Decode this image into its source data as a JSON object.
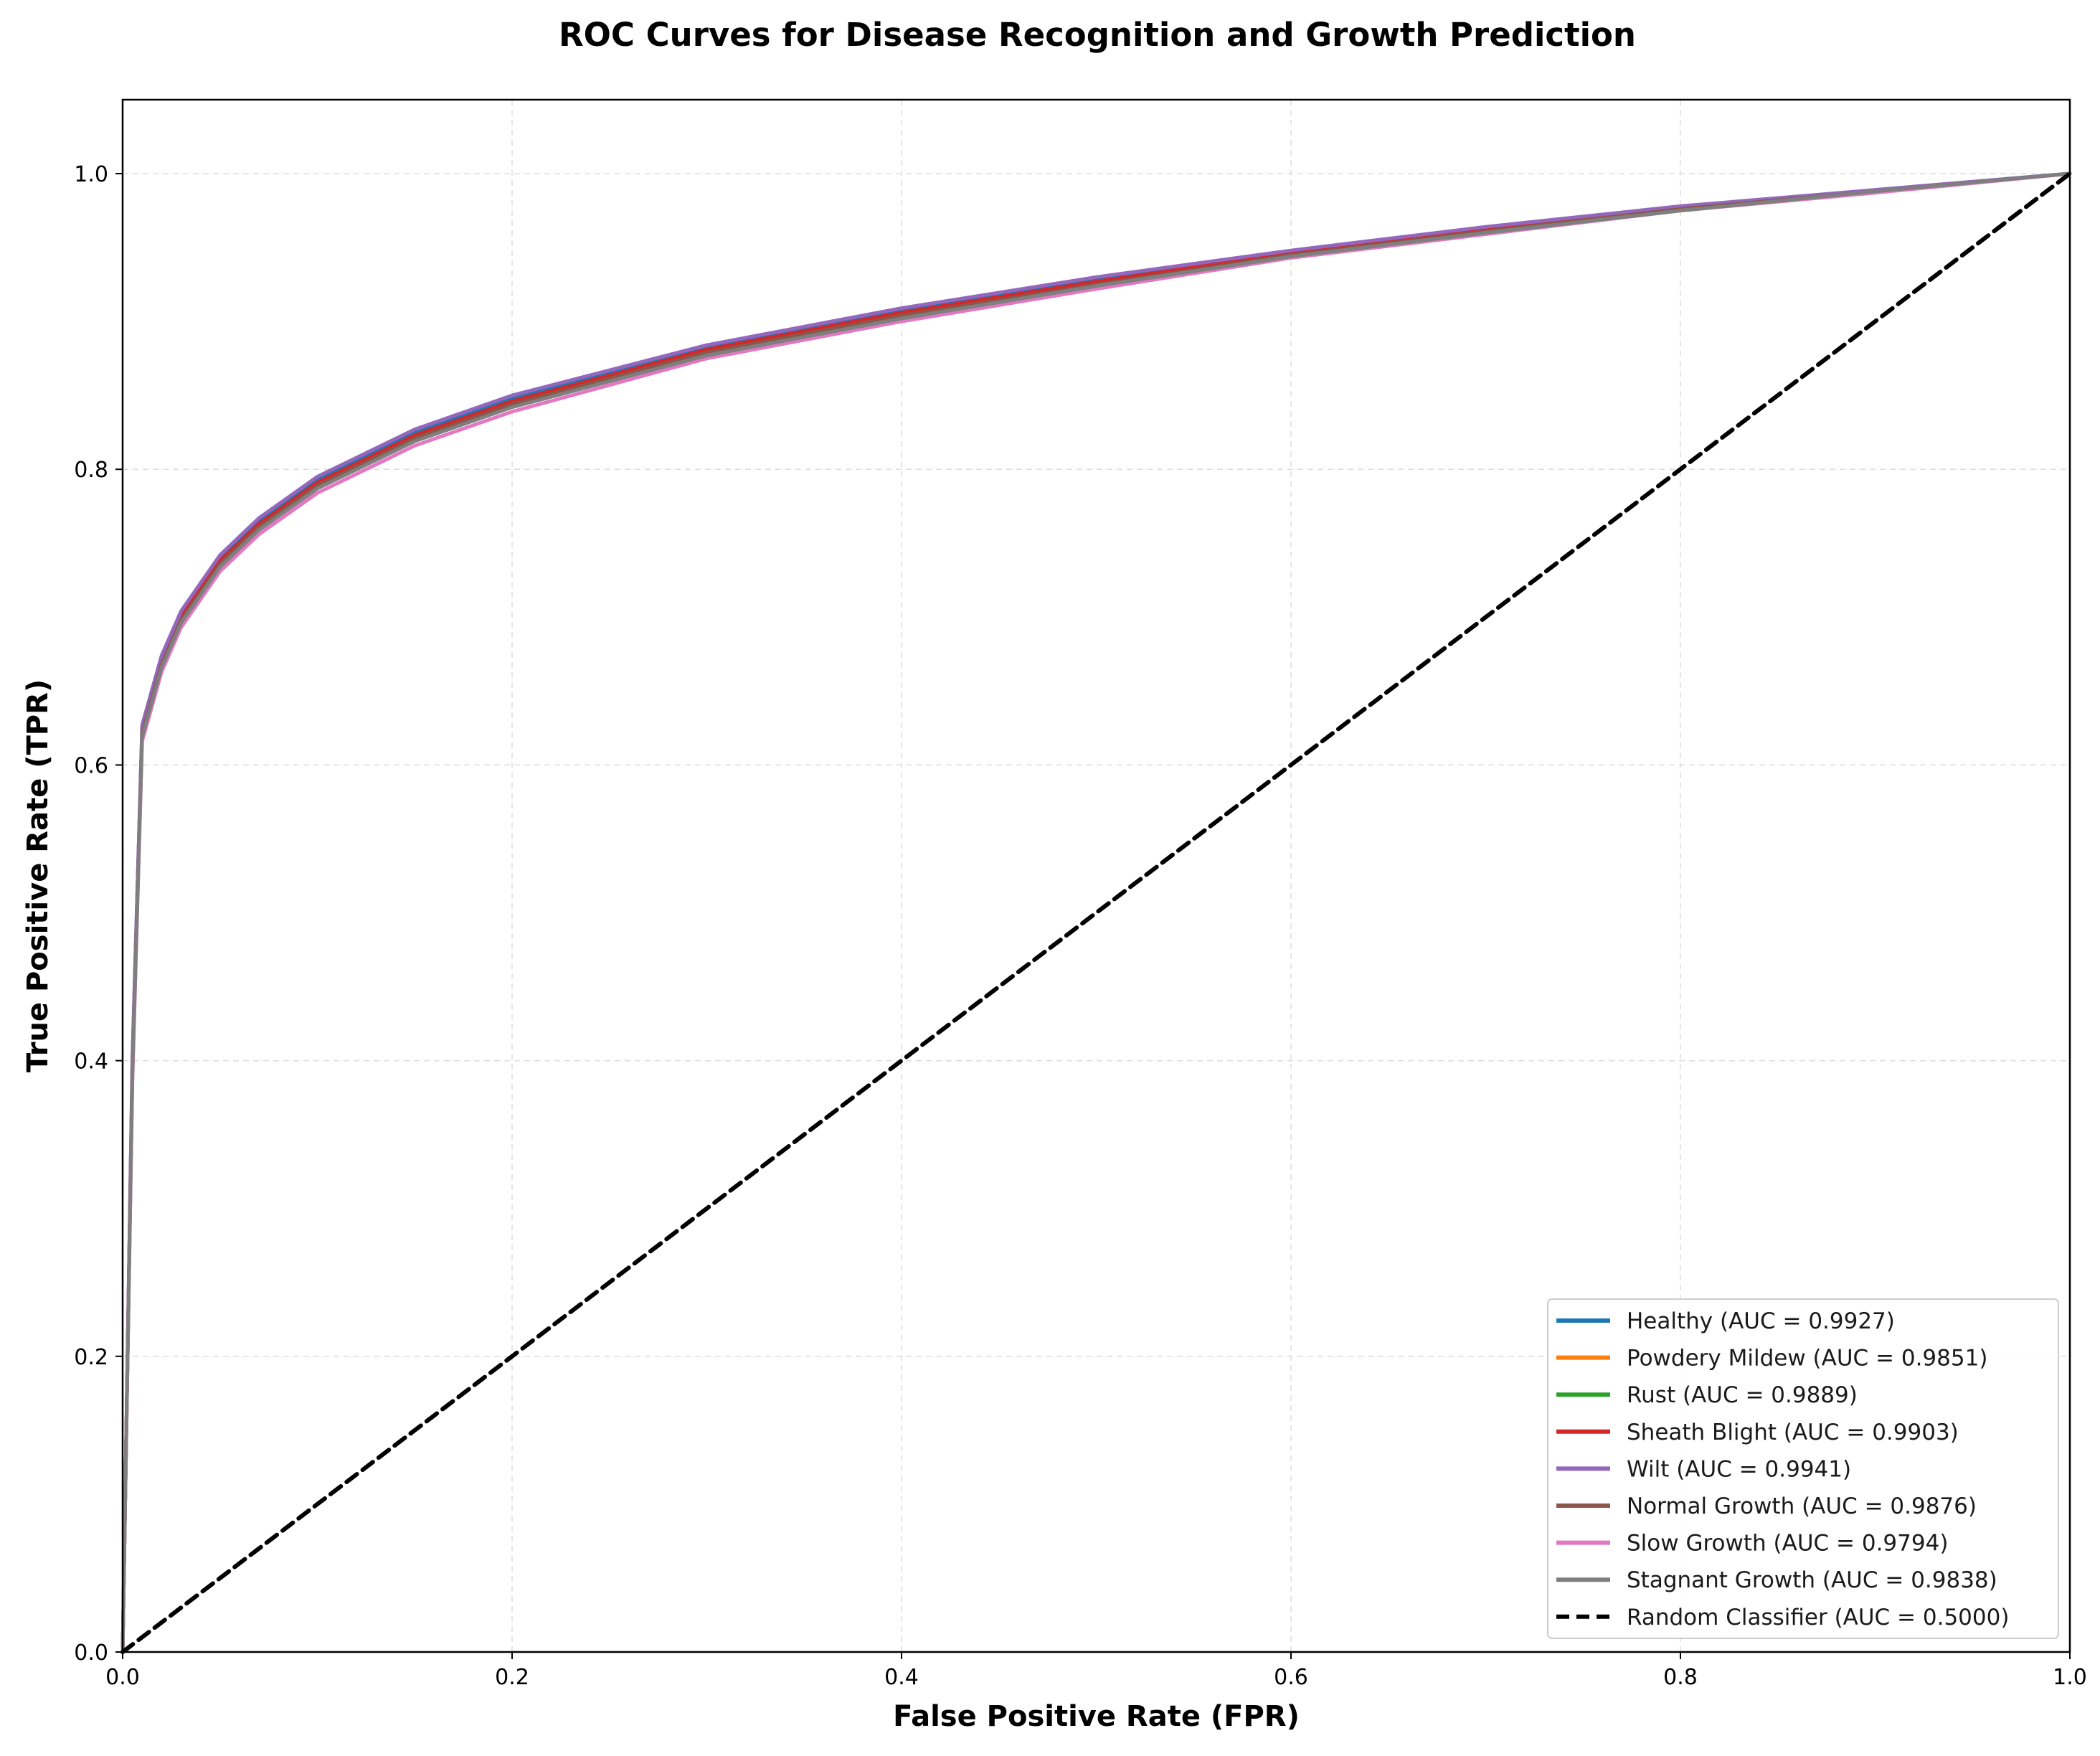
{
  "chart_data": {
    "type": "line",
    "title": "ROC Curves for Disease Recognition and Growth Prediction",
    "xlabel": "False Positive Rate (FPR)",
    "ylabel": "True Positive Rate (TPR)",
    "xlim": [
      0.0,
      1.0
    ],
    "ylim": [
      0.0,
      1.05
    ],
    "x_ticks": [
      "0.0",
      "0.2",
      "0.4",
      "0.6",
      "0.8",
      "1.0"
    ],
    "y_ticks": [
      "0.0",
      "0.2",
      "0.4",
      "0.6",
      "0.8",
      "1.0"
    ],
    "grid": true,
    "legend_position": "lower-right",
    "x": [
      0.0,
      0.005,
      0.01,
      0.02,
      0.03,
      0.05,
      0.07,
      0.1,
      0.15,
      0.2,
      0.3,
      0.4,
      0.5,
      0.6,
      0.7,
      0.8,
      0.9,
      1.0
    ],
    "series": [
      {
        "name": "Healthy (AUC = 0.9927)",
        "color": "#1f77b4",
        "values": [
          0.0,
          0.4,
          0.625,
          0.672,
          0.702,
          0.74,
          0.765,
          0.793,
          0.825,
          0.848,
          0.882,
          0.907,
          0.928,
          0.947,
          0.963,
          0.977,
          0.989,
          1.0
        ]
      },
      {
        "name": "Powdery Mildew (AUC = 0.9851)",
        "color": "#ff7f0e",
        "values": [
          0.0,
          0.39,
          0.62,
          0.667,
          0.697,
          0.735,
          0.76,
          0.788,
          0.82,
          0.843,
          0.878,
          0.903,
          0.925,
          0.945,
          0.961,
          0.976,
          0.988,
          1.0
        ]
      },
      {
        "name": "Rust (AUC = 0.9889)",
        "color": "#2ca02c",
        "values": [
          0.0,
          0.395,
          0.622,
          0.669,
          0.699,
          0.737,
          0.762,
          0.79,
          0.822,
          0.845,
          0.88,
          0.905,
          0.926,
          0.946,
          0.962,
          0.976,
          0.988,
          1.0
        ]
      },
      {
        "name": "Sheath Blight (AUC = 0.9903)",
        "color": "#d62728",
        "values": [
          0.0,
          0.398,
          0.623,
          0.67,
          0.7,
          0.738,
          0.763,
          0.791,
          0.823,
          0.846,
          0.881,
          0.906,
          0.927,
          0.946,
          0.962,
          0.977,
          0.988,
          1.0
        ]
      },
      {
        "name": "Wilt (AUC = 0.9941)",
        "color": "#9467bd",
        "values": [
          0.0,
          0.402,
          0.627,
          0.674,
          0.704,
          0.742,
          0.767,
          0.795,
          0.827,
          0.85,
          0.884,
          0.909,
          0.93,
          0.948,
          0.964,
          0.978,
          0.989,
          1.0
        ]
      },
      {
        "name": "Normal Growth (AUC = 0.9876)",
        "color": "#8c564b",
        "values": [
          0.0,
          0.393,
          0.621,
          0.668,
          0.698,
          0.736,
          0.761,
          0.789,
          0.821,
          0.844,
          0.879,
          0.904,
          0.925,
          0.945,
          0.961,
          0.976,
          0.988,
          1.0
        ]
      },
      {
        "name": "Slow Growth (AUC = 0.9794)",
        "color": "#e377c2",
        "values": [
          0.0,
          0.385,
          0.616,
          0.663,
          0.693,
          0.731,
          0.756,
          0.784,
          0.816,
          0.839,
          0.875,
          0.9,
          0.922,
          0.943,
          0.959,
          0.975,
          0.987,
          1.0
        ]
      },
      {
        "name": "Stagnant Growth (AUC = 0.9838)",
        "color": "#7f7f7f",
        "values": [
          0.0,
          0.39,
          0.619,
          0.666,
          0.696,
          0.734,
          0.759,
          0.787,
          0.819,
          0.842,
          0.877,
          0.902,
          0.924,
          0.944,
          0.96,
          0.975,
          0.988,
          1.0
        ]
      },
      {
        "name": "Random Classifier (AUC = 0.5000)",
        "color": "#000000",
        "dashed": true,
        "values": [
          0.0,
          0.005,
          0.01,
          0.02,
          0.03,
          0.05,
          0.07,
          0.1,
          0.15,
          0.2,
          0.3,
          0.4,
          0.5,
          0.6,
          0.7,
          0.8,
          0.9,
          1.0
        ]
      }
    ]
  }
}
